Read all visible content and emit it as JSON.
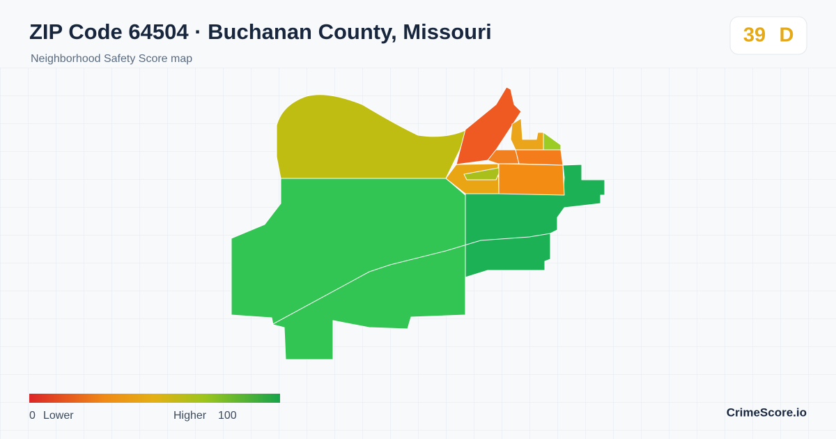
{
  "header": {
    "title": "ZIP Code 64504 · Buchanan County, Missouri",
    "subtitle": "Neighborhood Safety Score map"
  },
  "score": {
    "value": "39",
    "grade": "D"
  },
  "legend": {
    "min": "0",
    "low_label": "Lower",
    "high_label": "Higher",
    "max": "100"
  },
  "brand": "CrimeScore.io"
}
